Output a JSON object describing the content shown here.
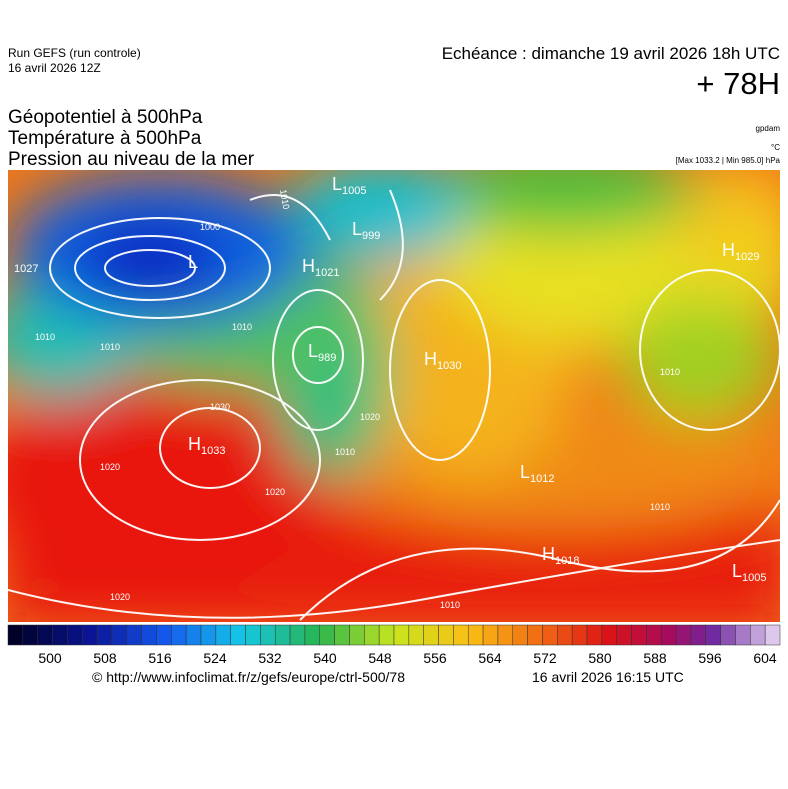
{
  "header": {
    "run": "Run GEFS (run controle)",
    "run_date": "16 avril 2026 12Z",
    "echeance": "Echéance : dimanche 19 avril 2026 18h UTC",
    "lead": "+ 78H"
  },
  "titles": [
    "Géopotentiel à 500hPa",
    "Température à 500hPa",
    "Pression au niveau de la mer"
  ],
  "units": [
    "gpdam",
    "°C",
    "[Max 1033.2 | Min 985.0] hPa"
  ],
  "pressure_centers": [
    {
      "type": "L",
      "value": "1005"
    },
    {
      "type": "L",
      "value": "999"
    },
    {
      "type": "H",
      "value": "1021"
    },
    {
      "type": "L",
      "value": "989"
    },
    {
      "type": "H",
      "value": "1030"
    },
    {
      "type": "H",
      "value": "1033"
    },
    {
      "type": "L"
    },
    {
      "type": "H",
      "value": "1029"
    },
    {
      "value": "1027"
    },
    {
      "type": "L",
      "value": "1012"
    },
    {
      "type": "H",
      "value": "1018"
    },
    {
      "type": "L",
      "value": "1005"
    }
  ],
  "isobar_labels": [
    "1000",
    "1010",
    "1010",
    "1010",
    "1020",
    "1030",
    "1020",
    "1020",
    "1010",
    "1010",
    "1020",
    "1010",
    "1010",
    "1010"
  ],
  "colorbar": {
    "labels": [
      500,
      508,
      516,
      524,
      532,
      540,
      548,
      556,
      564,
      572,
      580,
      588,
      596,
      604
    ]
  },
  "footer": {
    "url": "© http://www.infoclimat.fr/z/gefs/europe/ctrl-500/78",
    "date": "16 avril 2026 16:15 UTC"
  }
}
